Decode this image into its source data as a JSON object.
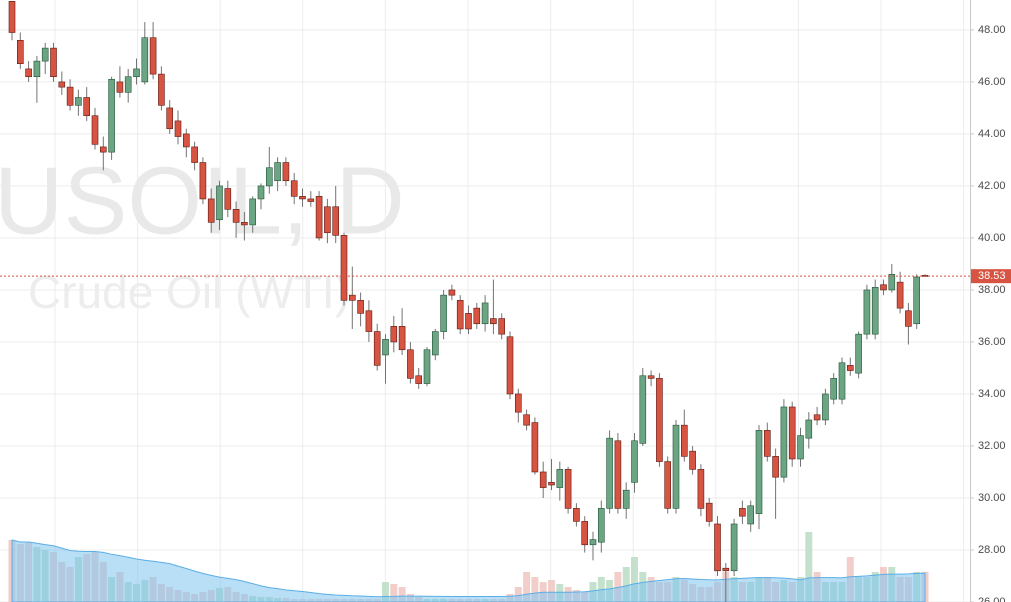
{
  "chart_data": {
    "type": "candlestick",
    "title": "USOIL, D",
    "subtitle": "Crude Oil (WTI)",
    "up_color": "#6ba583",
    "down_color": "#d75442",
    "volume_up_color": "#b9dcc3",
    "volume_down_color": "#f0c6c1",
    "volume_avg_color": "#7fc4f0",
    "ylim": [
      26,
      49.15
    ],
    "yticks": [
      {
        "value": 26,
        "label": "26.00"
      },
      {
        "value": 28,
        "label": "28.00"
      },
      {
        "value": 30,
        "label": "30.00"
      },
      {
        "value": 32,
        "label": "32.00"
      },
      {
        "value": 34,
        "label": "34.00"
      },
      {
        "value": 36,
        "label": "36.00"
      },
      {
        "value": 38,
        "label": "38.00"
      },
      {
        "value": 40,
        "label": "40.00"
      },
      {
        "value": 42,
        "label": "42.00"
      },
      {
        "value": 44,
        "label": "44.00"
      },
      {
        "value": 46,
        "label": "46.00"
      },
      {
        "value": 48,
        "label": "48.00"
      }
    ],
    "grid": true,
    "last_price": 38.53,
    "ohlc": [
      [
        49.1,
        49.1,
        47.6,
        47.9
      ],
      [
        47.6,
        47.9,
        46.5,
        46.7
      ],
      [
        46.5,
        46.8,
        46.0,
        46.2
      ],
      [
        46.2,
        47.0,
        45.2,
        46.8
      ],
      [
        46.8,
        47.5,
        46.3,
        47.3
      ],
      [
        47.3,
        47.5,
        46.0,
        46.2
      ],
      [
        46.0,
        46.4,
        45.5,
        45.8
      ],
      [
        45.8,
        46.1,
        44.9,
        45.1
      ],
      [
        45.1,
        45.7,
        44.7,
        45.4
      ],
      [
        45.4,
        45.8,
        44.5,
        44.7
      ],
      [
        44.7,
        45.0,
        43.4,
        43.6
      ],
      [
        43.5,
        43.9,
        42.6,
        43.3
      ],
      [
        43.3,
        46.2,
        43.0,
        46.1
      ],
      [
        46.0,
        46.6,
        45.4,
        45.6
      ],
      [
        45.6,
        46.5,
        45.2,
        46.2
      ],
      [
        46.2,
        46.9,
        45.9,
        46.5
      ],
      [
        46.0,
        48.3,
        45.9,
        47.7
      ],
      [
        47.7,
        48.3,
        46.1,
        46.3
      ],
      [
        46.3,
        46.6,
        44.9,
        45.1
      ],
      [
        45.0,
        45.3,
        44.0,
        44.2
      ],
      [
        44.5,
        44.9,
        43.6,
        43.9
      ],
      [
        44.0,
        44.2,
        43.1,
        43.5
      ],
      [
        43.5,
        43.7,
        42.6,
        42.9
      ],
      [
        42.9,
        43.1,
        41.3,
        41.5
      ],
      [
        41.5,
        41.9,
        40.2,
        40.6
      ],
      [
        40.7,
        42.2,
        40.3,
        42.0
      ],
      [
        41.9,
        42.2,
        40.8,
        41.1
      ],
      [
        41.1,
        41.4,
        40.0,
        40.6
      ],
      [
        40.6,
        41.0,
        39.9,
        40.5
      ],
      [
        40.5,
        41.6,
        40.2,
        41.5
      ],
      [
        41.5,
        42.1,
        41.1,
        42.0
      ],
      [
        42.0,
        43.5,
        41.7,
        42.7
      ],
      [
        42.2,
        43.1,
        41.8,
        42.9
      ],
      [
        42.9,
        43.1,
        42.0,
        42.2
      ],
      [
        42.2,
        42.5,
        41.3,
        41.6
      ],
      [
        41.6,
        41.9,
        41.2,
        41.5
      ],
      [
        41.5,
        41.8,
        41.2,
        41.4
      ],
      [
        41.6,
        41.8,
        39.9,
        40.0
      ],
      [
        41.2,
        41.5,
        39.8,
        40.2
      ],
      [
        41.2,
        42.0,
        39.8,
        40.1
      ],
      [
        40.1,
        40.2,
        37.4,
        37.6
      ],
      [
        37.8,
        38.9,
        36.5,
        37.6
      ],
      [
        37.6,
        37.9,
        36.6,
        37.1
      ],
      [
        37.2,
        37.6,
        36.0,
        36.4
      ],
      [
        36.4,
        36.7,
        34.9,
        35.1
      ],
      [
        35.5,
        36.3,
        34.4,
        36.1
      ],
      [
        36.6,
        37.0,
        35.6,
        36.0
      ],
      [
        36.6,
        37.3,
        35.5,
        35.7
      ],
      [
        35.7,
        36.0,
        34.4,
        34.6
      ],
      [
        34.7,
        35.0,
        34.2,
        34.4
      ],
      [
        34.4,
        35.8,
        34.3,
        35.7
      ],
      [
        35.5,
        36.5,
        35.3,
        36.4
      ],
      [
        36.4,
        38.0,
        36.1,
        37.8
      ],
      [
        38.0,
        38.2,
        37.6,
        37.8
      ],
      [
        37.6,
        37.8,
        36.3,
        36.5
      ],
      [
        37.1,
        37.4,
        36.3,
        36.5
      ],
      [
        37.3,
        37.5,
        36.5,
        36.7
      ],
      [
        36.7,
        37.8,
        36.4,
        37.5
      ],
      [
        36.9,
        38.4,
        36.3,
        36.7
      ],
      [
        36.9,
        37.1,
        36.1,
        36.3
      ],
      [
        36.2,
        36.4,
        33.8,
        34.0
      ],
      [
        34.0,
        34.2,
        32.9,
        33.3
      ],
      [
        33.2,
        33.4,
        32.6,
        32.8
      ],
      [
        32.9,
        33.1,
        30.9,
        31.0
      ],
      [
        31.0,
        31.4,
        30.0,
        30.4
      ],
      [
        30.6,
        31.5,
        30.3,
        30.5
      ],
      [
        30.4,
        31.4,
        29.9,
        31.1
      ],
      [
        31.1,
        31.2,
        29.4,
        29.6
      ],
      [
        29.6,
        29.8,
        28.9,
        29.1
      ],
      [
        29.1,
        29.3,
        27.9,
        28.2
      ],
      [
        28.2,
        28.7,
        27.6,
        28.4
      ],
      [
        28.3,
        29.9,
        27.9,
        29.6
      ],
      [
        29.6,
        32.6,
        29.4,
        32.3
      ],
      [
        32.2,
        32.5,
        29.4,
        29.6
      ],
      [
        29.6,
        30.6,
        29.2,
        30.3
      ],
      [
        30.6,
        32.5,
        30.2,
        32.2
      ],
      [
        32.1,
        35.0,
        32.0,
        34.7
      ],
      [
        34.7,
        34.9,
        34.3,
        34.6
      ],
      [
        34.6,
        34.8,
        31.2,
        31.4
      ],
      [
        31.4,
        31.6,
        29.4,
        29.6
      ],
      [
        29.6,
        33.0,
        29.4,
        32.8
      ],
      [
        32.8,
        33.4,
        31.4,
        31.6
      ],
      [
        31.8,
        32.0,
        30.9,
        31.1
      ],
      [
        31.1,
        31.3,
        29.3,
        29.6
      ],
      [
        29.8,
        30.0,
        28.9,
        29.1
      ],
      [
        29.0,
        29.3,
        27.0,
        27.2
      ],
      [
        27.3,
        27.5,
        26.0,
        27.2
      ],
      [
        27.2,
        29.2,
        27.0,
        29.0
      ],
      [
        29.6,
        29.9,
        29.0,
        29.3
      ],
      [
        29.0,
        29.9,
        28.7,
        29.7
      ],
      [
        29.4,
        32.8,
        28.8,
        32.6
      ],
      [
        32.6,
        32.9,
        31.4,
        31.6
      ],
      [
        31.6,
        31.9,
        29.2,
        30.8
      ],
      [
        30.8,
        33.8,
        30.6,
        33.5
      ],
      [
        33.5,
        33.7,
        31.2,
        31.5
      ],
      [
        31.5,
        32.7,
        31.2,
        32.4
      ],
      [
        32.3,
        33.3,
        31.9,
        33.0
      ],
      [
        33.2,
        33.5,
        32.8,
        33.0
      ],
      [
        33.0,
        34.2,
        32.8,
        34.0
      ],
      [
        33.8,
        34.8,
        33.6,
        34.6
      ],
      [
        33.8,
        35.4,
        33.6,
        35.2
      ],
      [
        35.1,
        35.4,
        34.7,
        34.9
      ],
      [
        34.8,
        36.4,
        34.6,
        36.3
      ],
      [
        36.3,
        38.2,
        36.1,
        38.0
      ],
      [
        36.3,
        38.4,
        36.1,
        38.1
      ],
      [
        38.2,
        38.4,
        37.8,
        38.0
      ],
      [
        38.0,
        39.0,
        37.9,
        38.6
      ],
      [
        38.3,
        38.7,
        37.1,
        37.3
      ],
      [
        37.2,
        37.5,
        35.9,
        36.6
      ],
      [
        36.7,
        38.6,
        36.5,
        38.5
      ],
      [
        38.56,
        38.6,
        38.5,
        38.53
      ]
    ],
    "volume": [
      62,
      58,
      60,
      55,
      52,
      50,
      40,
      35,
      45,
      48,
      50,
      40,
      25,
      30,
      20,
      18,
      22,
      25,
      18,
      15,
      12,
      10,
      8,
      10,
      12,
      14,
      15,
      10,
      8,
      6,
      5,
      5,
      4,
      4,
      3,
      3,
      3,
      3,
      3,
      3,
      3,
      3,
      3,
      3,
      3,
      20,
      18,
      15,
      8,
      5,
      3,
      3,
      3,
      3,
      3,
      3,
      3,
      3,
      3,
      3,
      8,
      15,
      30,
      25,
      20,
      22,
      18,
      15,
      12,
      10,
      20,
      25,
      22,
      30,
      35,
      45,
      30,
      25,
      20,
      20,
      25,
      22,
      18,
      15,
      15,
      20,
      30,
      25,
      20,
      20,
      25,
      25,
      20,
      22,
      20,
      25,
      70,
      30,
      20,
      20,
      20,
      45,
      25,
      25,
      30,
      35,
      35,
      25,
      25,
      30,
      30
    ]
  }
}
